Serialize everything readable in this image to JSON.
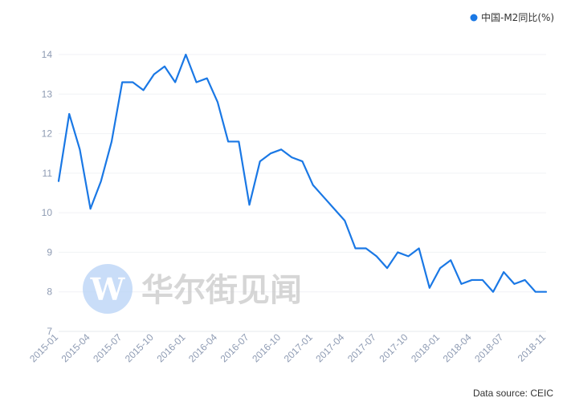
{
  "chart_data": {
    "type": "line",
    "legend": {
      "label": "中国-M2同比(%)",
      "position": "top-right"
    },
    "colors": {
      "series": "#1a78e5",
      "axis_text": "#8e9bb3",
      "grid": "#f0f2f5"
    },
    "x_ticks": [
      "2015-01",
      "2015-04",
      "2015-07",
      "2015-10",
      "2016-01",
      "2016-04",
      "2016-07",
      "2016-10",
      "2017-01",
      "2017-04",
      "2017-07",
      "2017-10",
      "2018-01",
      "2018-04",
      "2018-07",
      "2018-11"
    ],
    "y_ticks": [
      7,
      8,
      9,
      10,
      11,
      12,
      13,
      14
    ],
    "ylim": [
      7,
      14
    ],
    "grid": true,
    "series": [
      {
        "name": "中国-M2同比(%)",
        "x": [
          "2015-01",
          "2015-02",
          "2015-03",
          "2015-04",
          "2015-05",
          "2015-06",
          "2015-07",
          "2015-08",
          "2015-09",
          "2015-10",
          "2015-11",
          "2015-12",
          "2016-01",
          "2016-02",
          "2016-03",
          "2016-04",
          "2016-05",
          "2016-06",
          "2016-07",
          "2016-08",
          "2016-09",
          "2016-10",
          "2016-11",
          "2016-12",
          "2017-01",
          "2017-02",
          "2017-03",
          "2017-04",
          "2017-05",
          "2017-06",
          "2017-07",
          "2017-08",
          "2017-09",
          "2017-10",
          "2017-11",
          "2017-12",
          "2018-01",
          "2018-02",
          "2018-03",
          "2018-04",
          "2018-05",
          "2018-06",
          "2018-07",
          "2018-08",
          "2018-09",
          "2018-10",
          "2018-11"
        ],
        "values": [
          10.8,
          12.5,
          11.6,
          10.1,
          10.8,
          11.8,
          13.3,
          13.3,
          13.1,
          13.5,
          13.7,
          13.3,
          14.0,
          13.3,
          13.4,
          12.8,
          11.8,
          11.8,
          10.2,
          11.3,
          11.5,
          11.6,
          11.4,
          11.3,
          10.7,
          10.4,
          10.1,
          9.8,
          9.1,
          9.1,
          8.9,
          8.6,
          9.0,
          8.9,
          9.1,
          8.1,
          8.6,
          8.8,
          8.2,
          8.3,
          8.3,
          8.0,
          8.5,
          8.2,
          8.3,
          8.0,
          8.0
        ]
      }
    ],
    "watermark": {
      "logo_letter": "W",
      "text": "华尔街见闻"
    },
    "source": "Data source: CEIC"
  }
}
